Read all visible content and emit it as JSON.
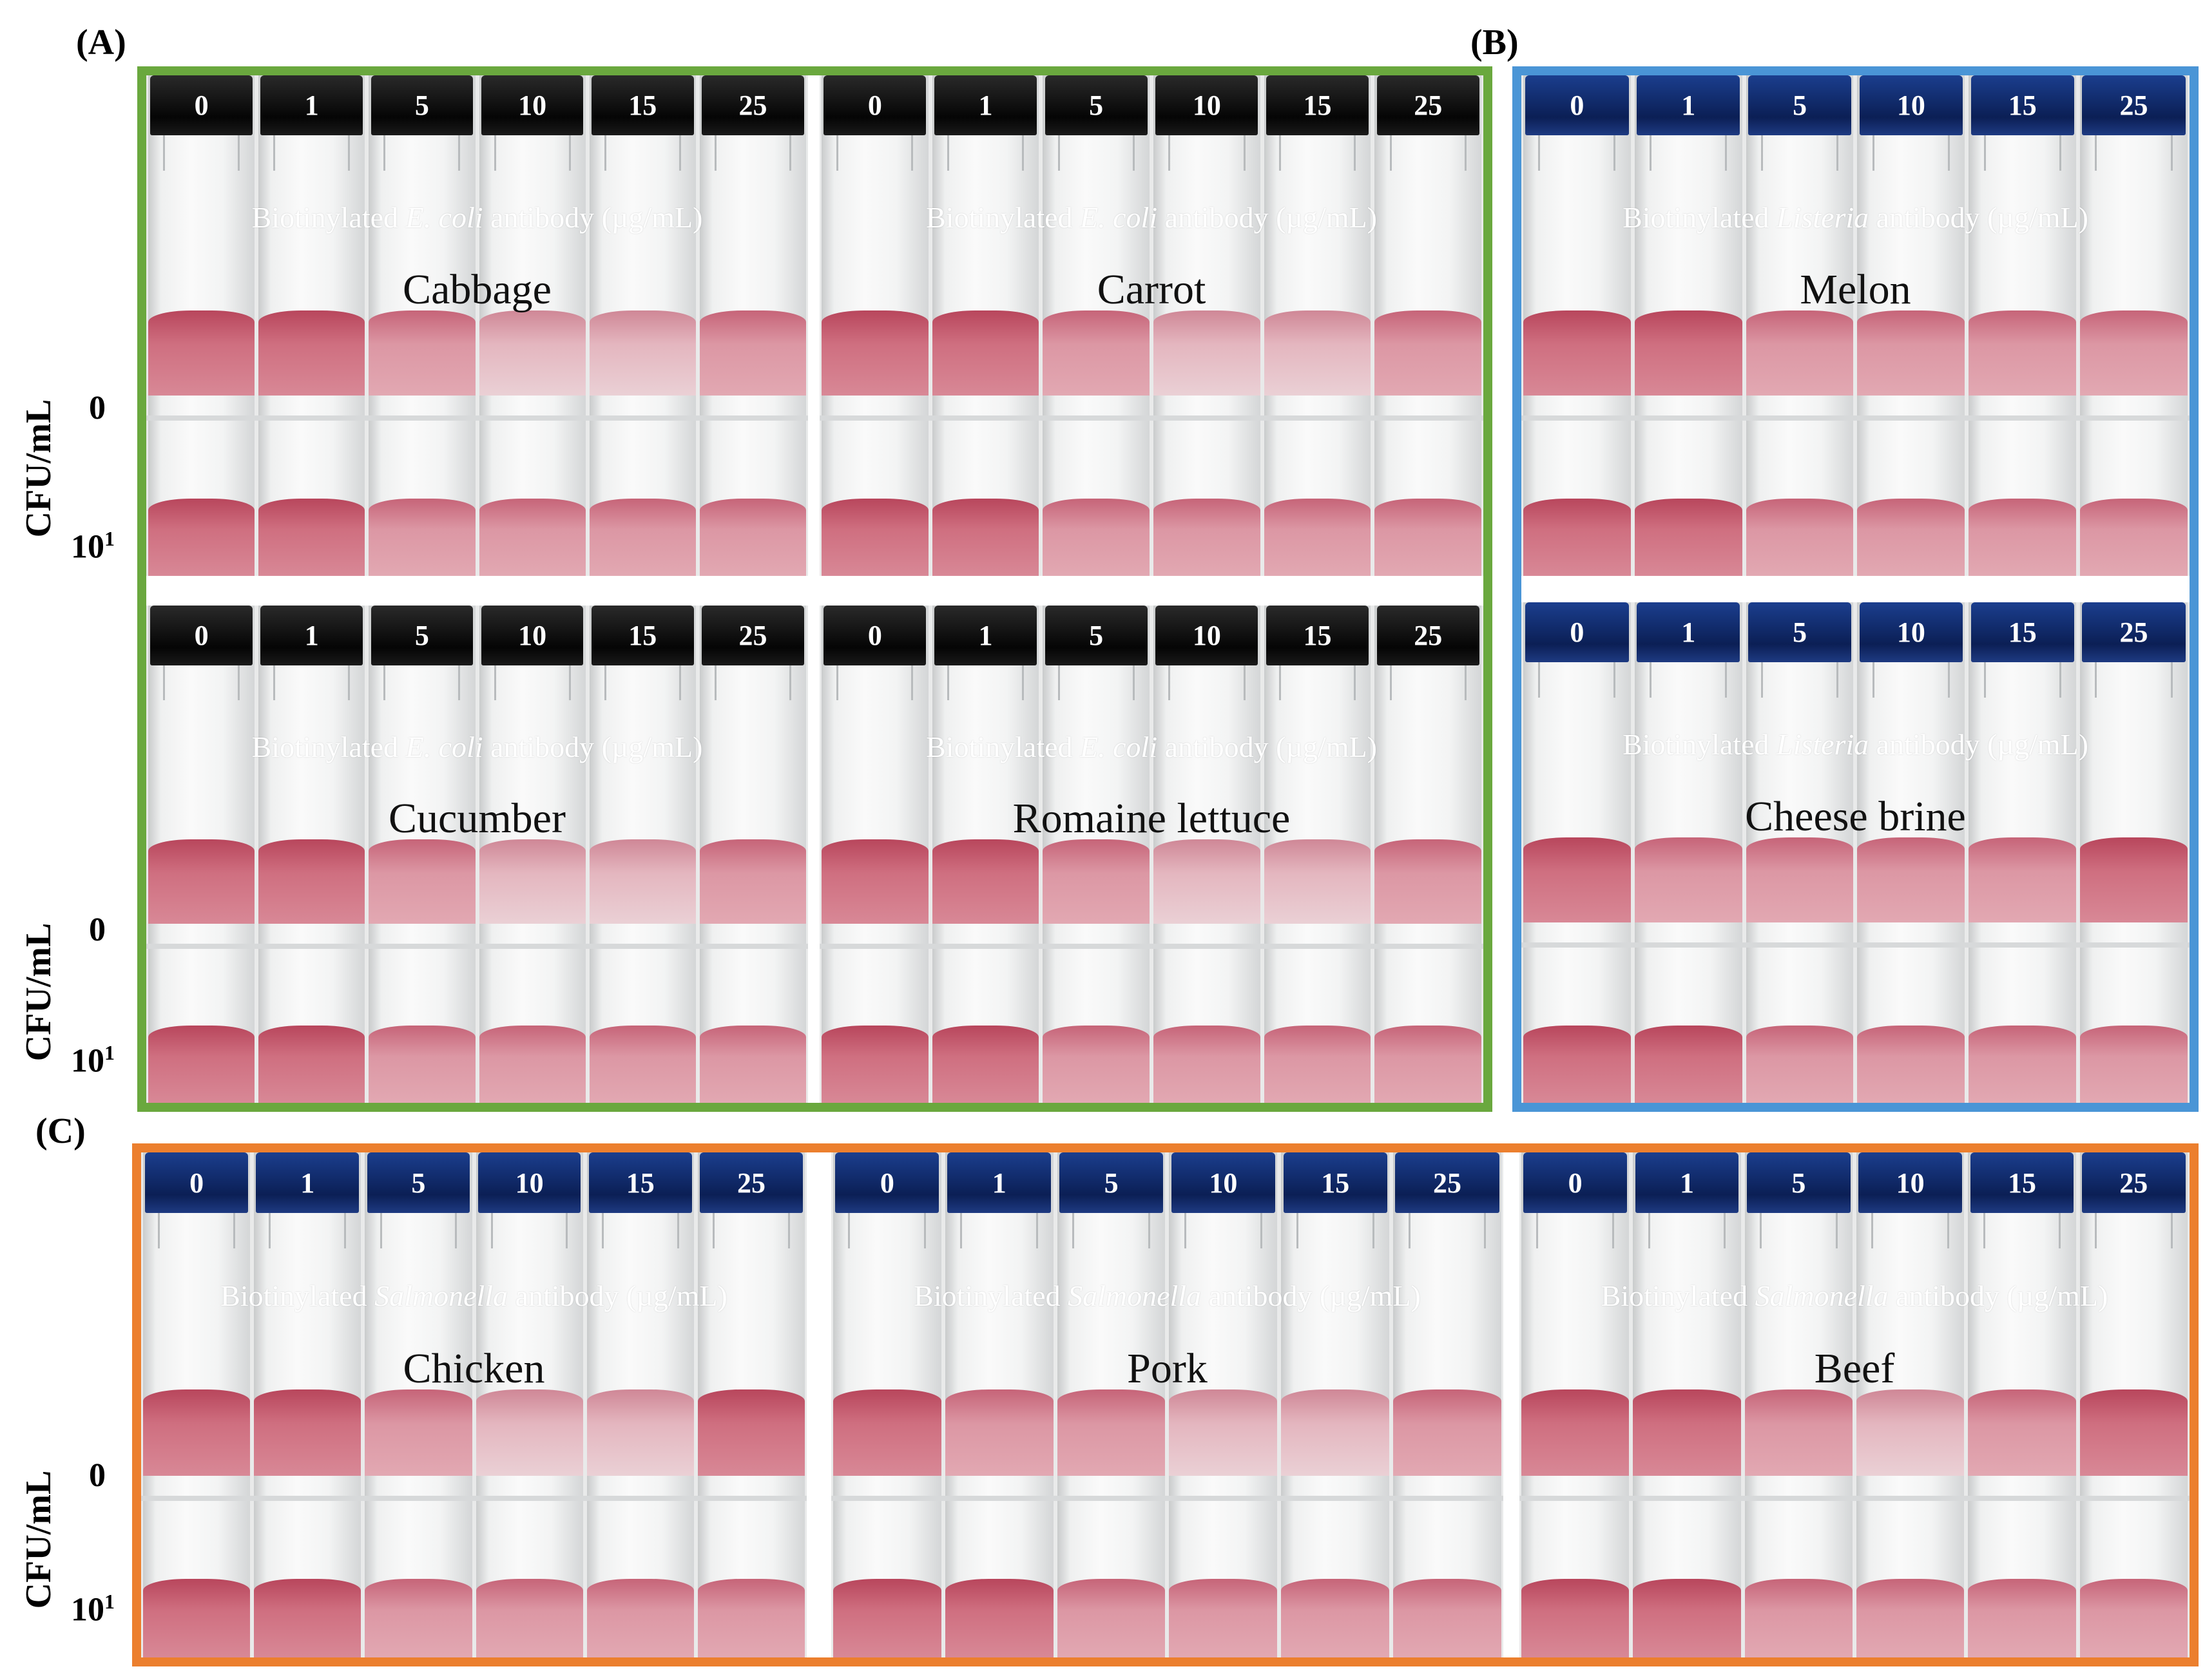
{
  "panels": {
    "A": {
      "label": "(A)",
      "color": "#6aa83e"
    },
    "B": {
      "label": "(B)",
      "color": "#4a95d6"
    },
    "C": {
      "label": "(C)",
      "color": "#ec7f2e"
    }
  },
  "axis": {
    "unit_label": "CFU/mL",
    "conc_zero": "0",
    "conc_one_base": "10",
    "conc_one_exp": "1"
  },
  "vial_caps": [
    "0",
    "1",
    "5",
    "10",
    "15",
    "25"
  ],
  "antibody": {
    "prefix": "Biotinylated ",
    "suffix": " antibody (µg/mL)",
    "ecoli": "E. coli",
    "listeria": "Listeria",
    "salmonella": "Salmonella"
  },
  "foods": {
    "cabbage": "Cabbage",
    "carrot": "Carrot",
    "cucumber": "Cucumber",
    "romaine": "Romaine lettuce",
    "melon": "Melon",
    "cheese": "Cheese brine",
    "chicken": "Chicken",
    "pork": "Pork",
    "beef": "Beef"
  }
}
